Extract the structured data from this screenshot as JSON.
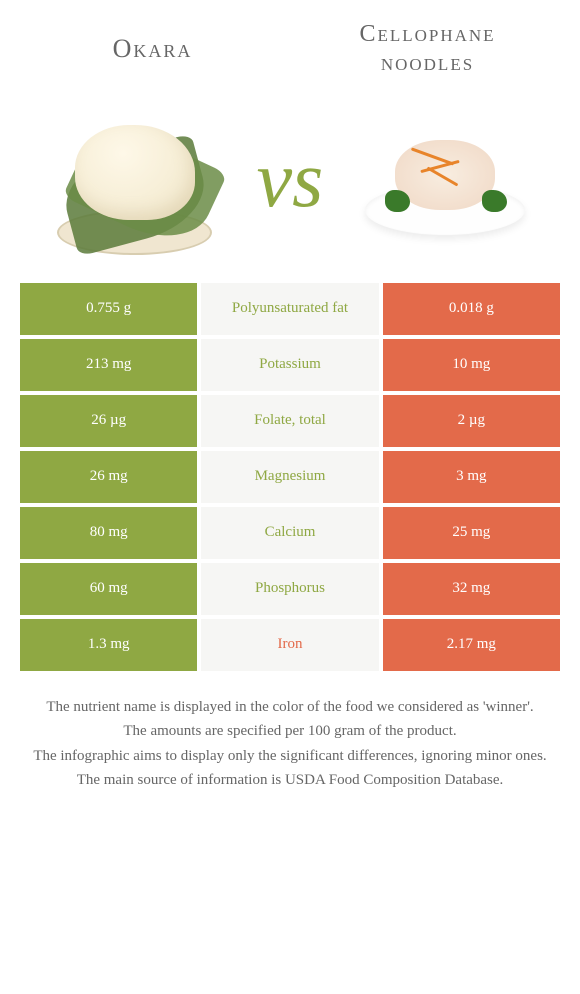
{
  "header": {
    "left_title": "Okara",
    "right_title": "Cellophane noodles",
    "vs": "vs"
  },
  "colors": {
    "left": "#8fa843",
    "right": "#e36a4a",
    "label_bg": "#f6f6f4",
    "text": "#666666"
  },
  "rows": [
    {
      "left": "0.755 g",
      "label": "Polyunsaturated fat",
      "right": "0.018 g",
      "winner": "left"
    },
    {
      "left": "213 mg",
      "label": "Potassium",
      "right": "10 mg",
      "winner": "left"
    },
    {
      "left": "26 µg",
      "label": "Folate, total",
      "right": "2 µg",
      "winner": "left"
    },
    {
      "left": "26 mg",
      "label": "Magnesium",
      "right": "3 mg",
      "winner": "left"
    },
    {
      "left": "80 mg",
      "label": "Calcium",
      "right": "25 mg",
      "winner": "left"
    },
    {
      "left": "60 mg",
      "label": "Phosphorus",
      "right": "32 mg",
      "winner": "left"
    },
    {
      "left": "1.3 mg",
      "label": "Iron",
      "right": "2.17 mg",
      "winner": "right"
    }
  ],
  "footer": [
    "The nutrient name is displayed in the color of the food we considered as 'winner'.",
    "The amounts are specified per 100 gram of the product.",
    "The infographic aims to display only the significant differences, ignoring minor ones.",
    "The main source of information is USDA Food Composition Database."
  ]
}
